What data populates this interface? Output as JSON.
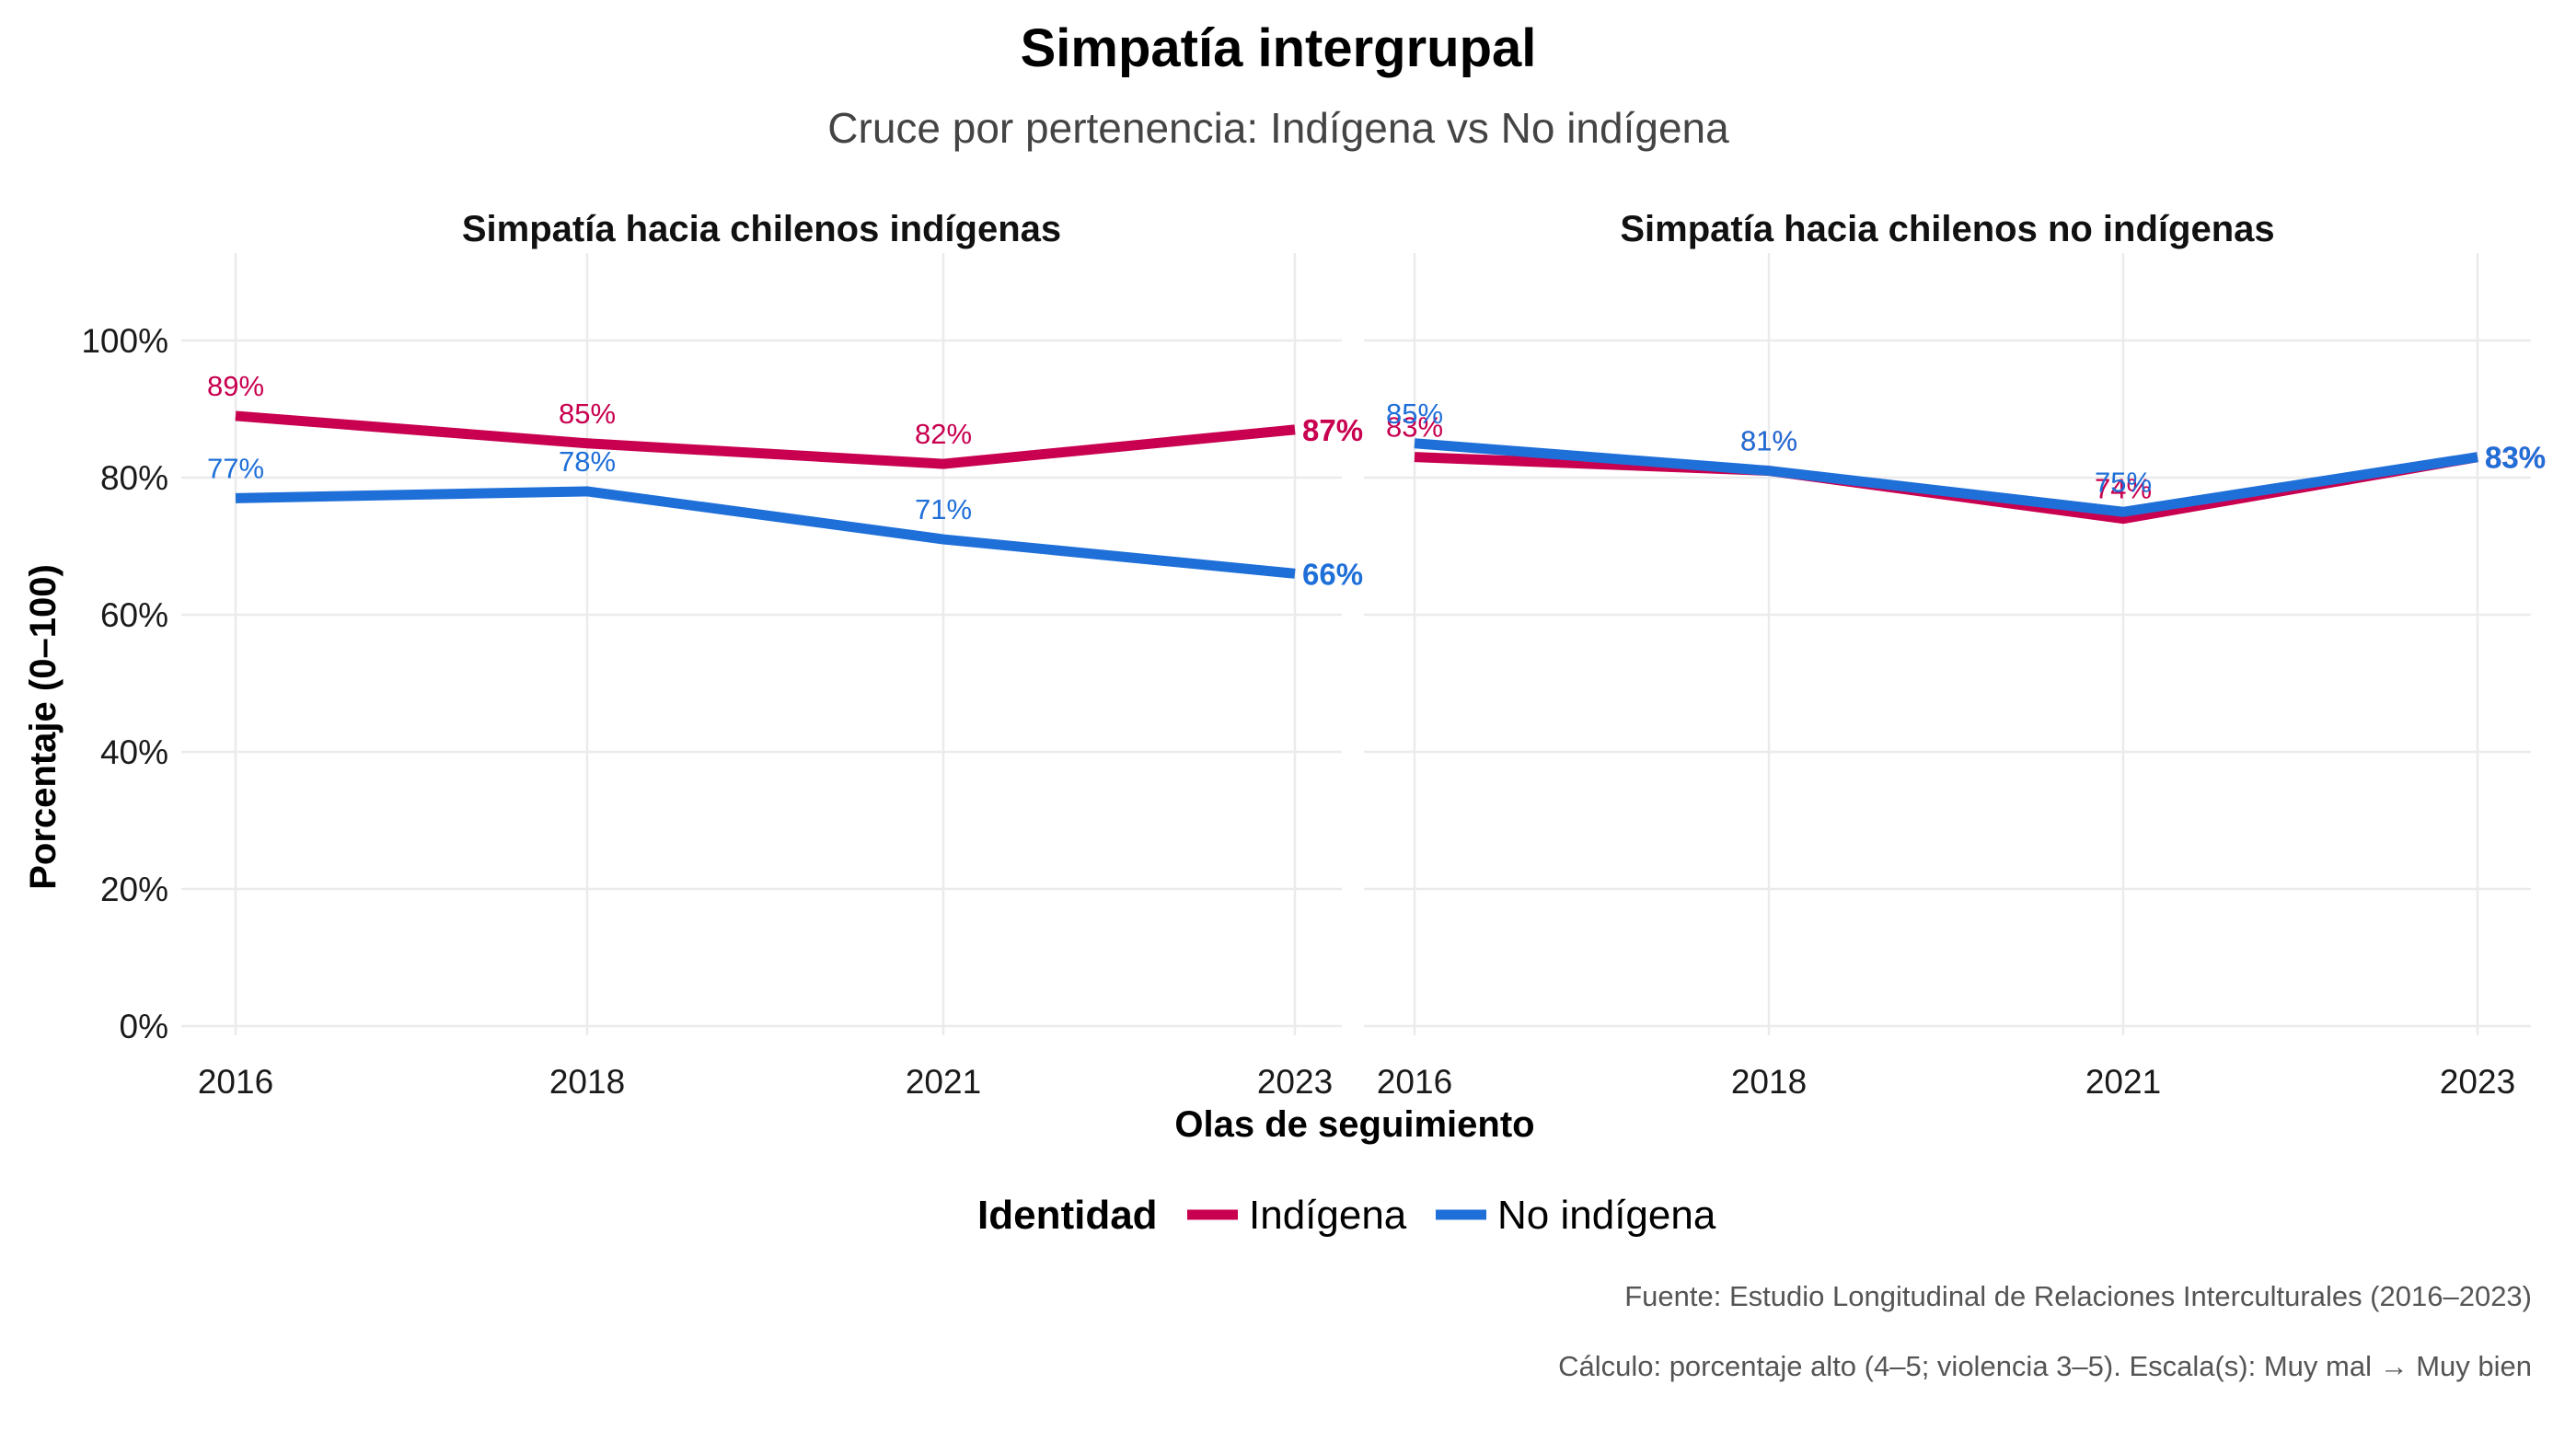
{
  "chart_data": {
    "type": "line",
    "title": "Simpatía intergrupal",
    "subtitle": "Cruce por pertenencia: Indígena vs No indígena",
    "xlabel": "Olas de seguimiento",
    "ylabel": "Porcentaje (0–100)",
    "x": [
      "2016",
      "2018",
      "2021",
      "2023"
    ],
    "ylim": [
      0,
      100
    ],
    "yticks": [
      0,
      20,
      40,
      60,
      80,
      100
    ],
    "ytick_labels": [
      "0%",
      "20%",
      "40%",
      "60%",
      "80%",
      "100%"
    ],
    "grid": true,
    "legend": {
      "title": "Identidad",
      "placement": "bottom",
      "entries": [
        "Indígena",
        "No indígena"
      ]
    },
    "series_colors": {
      "Indígena": "#C8004F",
      "No indígena": "#1F6FD8"
    },
    "panels": [
      {
        "title": "Simpatía hacia chilenos indígenas",
        "series": [
          {
            "name": "Indígena",
            "values": [
              89,
              85,
              82,
              87
            ],
            "labels": [
              "89%",
              "85%",
              "82%",
              "87%"
            ]
          },
          {
            "name": "No indígena",
            "values": [
              77,
              78,
              71,
              66
            ],
            "labels": [
              "77%",
              "78%",
              "71%",
              "66%"
            ]
          }
        ]
      },
      {
        "title": "Simpatía hacia chilenos no indígenas",
        "series": [
          {
            "name": "Indígena",
            "values": [
              83,
              81,
              74,
              83
            ],
            "labels": [
              "83%",
              "81%",
              "74%",
              "83%"
            ]
          },
          {
            "name": "No indígena",
            "values": [
              85,
              81,
              75,
              83
            ],
            "labels": [
              "85%",
              "81%",
              "75%",
              "83%"
            ]
          }
        ]
      }
    ],
    "captions": [
      "Fuente: Estudio Longitudinal de Relaciones Interculturales (2016–2023)",
      "Cálculo: porcentaje alto (4–5; violencia 3–5). Escala(s): Muy mal → Muy bien"
    ]
  }
}
